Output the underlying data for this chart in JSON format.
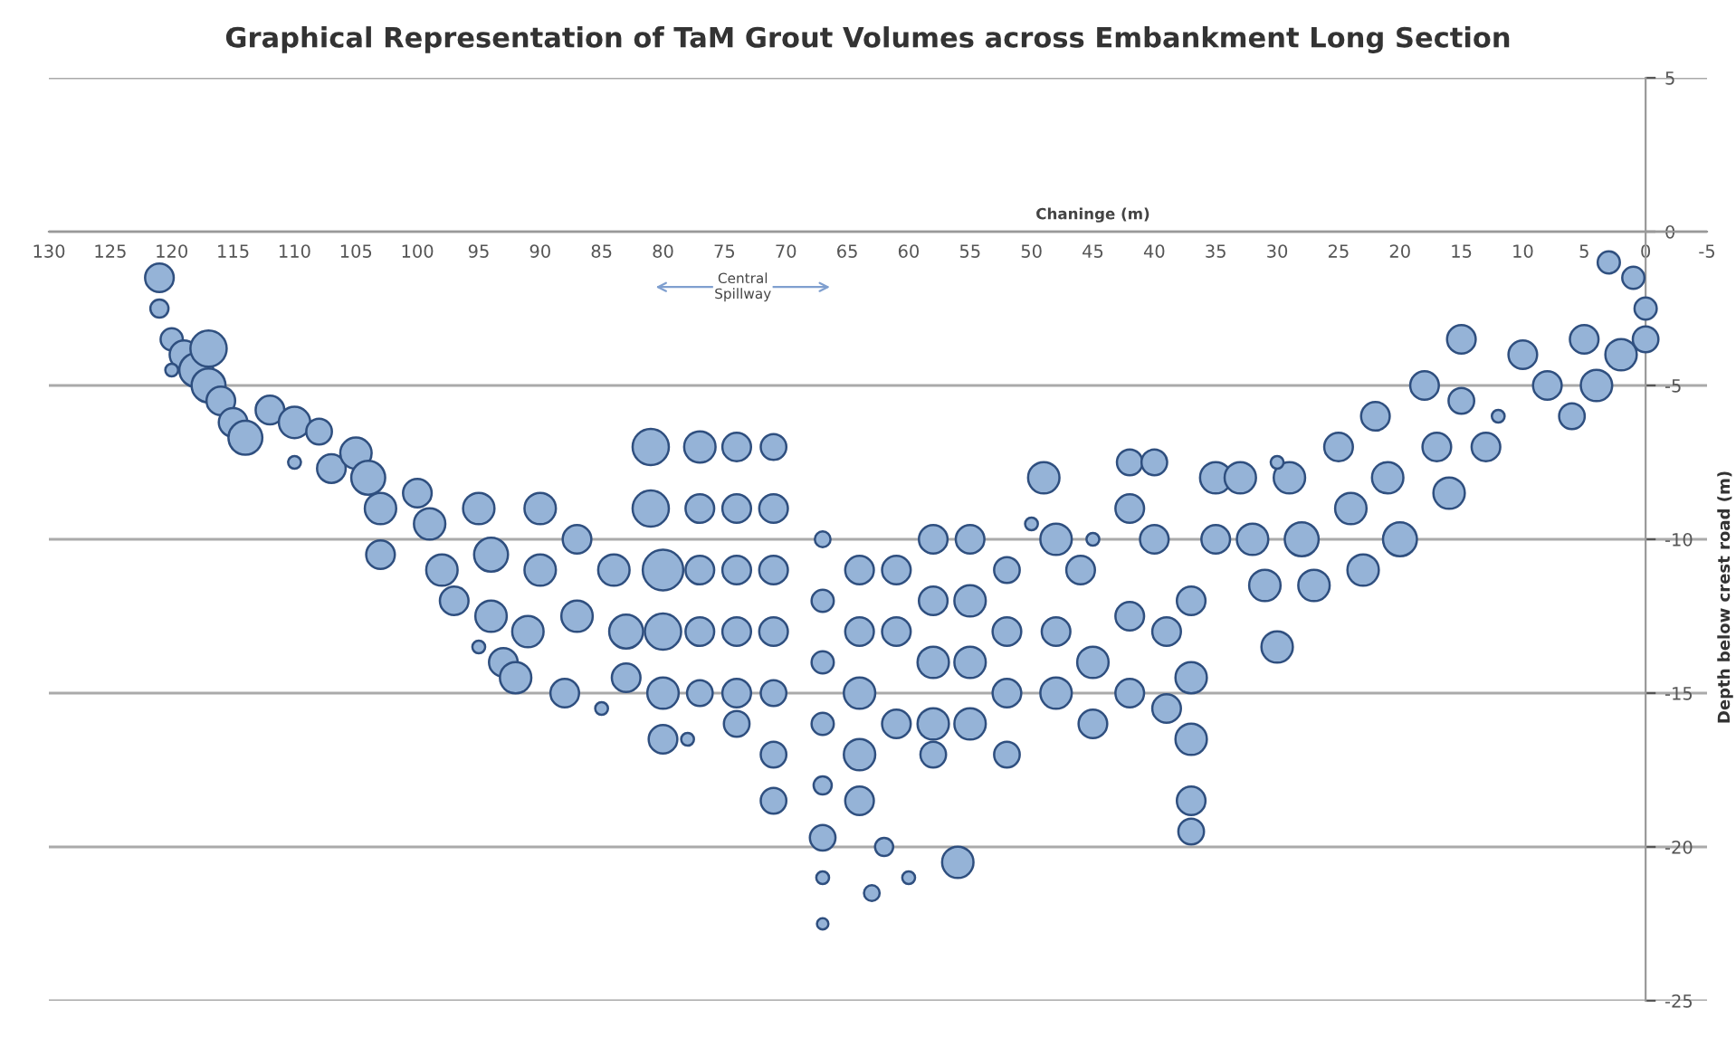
{
  "chart_data": {
    "type": "bubble",
    "title": "Graphical Representation of TaM Grout Volumes across Embankment Long Section",
    "xlabel": "Chaninge (m)",
    "ylabel": "Depth below crest road (m)",
    "color": "#95b3d7",
    "xlim": [
      130,
      -5
    ],
    "ylim": [
      -25,
      5
    ],
    "xticks": [
      130,
      125,
      120,
      115,
      110,
      105,
      100,
      95,
      90,
      85,
      80,
      75,
      70,
      65,
      60,
      55,
      50,
      45,
      40,
      35,
      30,
      25,
      20,
      15,
      10,
      5,
      0,
      -5
    ],
    "yticks": [
      5,
      0,
      -5,
      -10,
      -15,
      -20,
      -25
    ],
    "grid": "y",
    "annotations": [
      {
        "text": "Central Spillway",
        "x": 73.5,
        "y": -1.8
      }
    ],
    "x": [
      121,
      121,
      120,
      119,
      118,
      117,
      117,
      116,
      115,
      114,
      112,
      110,
      108,
      107,
      105,
      104,
      103,
      103,
      100,
      99,
      98,
      97,
      95,
      94,
      94,
      93,
      90,
      90,
      91,
      92,
      87,
      87,
      88,
      84,
      83,
      83,
      81,
      81,
      80,
      80,
      80,
      80,
      77,
      77,
      77,
      77,
      77,
      74,
      74,
      74,
      74,
      74,
      74,
      71,
      71,
      71,
      71,
      71,
      71,
      71,
      110,
      95,
      85,
      78,
      120,
      67,
      67,
      67,
      67,
      67,
      67,
      67,
      67,
      64,
      64,
      64,
      64,
      64,
      61,
      61,
      61,
      62,
      63,
      58,
      58,
      58,
      58,
      58,
      55,
      55,
      55,
      55,
      56,
      52,
      52,
      52,
      52,
      49,
      48,
      48,
      48,
      46,
      45,
      45,
      42,
      42,
      42,
      42,
      40,
      40,
      39,
      39,
      35,
      35,
      37,
      37,
      37,
      37,
      37,
      33,
      32,
      31,
      30,
      29,
      28,
      27,
      25,
      24,
      23,
      22,
      21,
      20,
      18,
      17,
      16,
      15,
      15,
      13,
      10,
      8,
      6,
      5,
      4,
      2,
      1,
      0,
      0,
      3,
      30,
      12,
      45,
      50,
      60
    ],
    "values": [
      -1.5,
      -2.5,
      -3.5,
      -4,
      -4.5,
      -3.8,
      -5,
      -5.5,
      -6.2,
      -6.7,
      -5.8,
      -6.2,
      -6.5,
      -7.7,
      -7.2,
      -8,
      -9,
      -10.5,
      -8.5,
      -9.5,
      -11,
      -12,
      -9,
      -10.5,
      -12.5,
      -14,
      -9,
      -11,
      -13,
      -14.5,
      -10,
      -12.5,
      -15,
      -11,
      -13,
      -14.5,
      -7,
      -9,
      -11,
      -13,
      -15,
      -16.5,
      -7,
      -9,
      -11,
      -13,
      -15,
      -7,
      -9,
      -11,
      -13,
      -15,
      -16,
      -7,
      -9,
      -11,
      -13,
      -15,
      -17,
      -18.5,
      -7.5,
      -13.5,
      -15.5,
      -16.5,
      -4.5,
      -10,
      -12,
      -14,
      -16,
      -18,
      -19.7,
      -21,
      -22.5,
      -11,
      -13,
      -15,
      -17,
      -18.5,
      -11,
      -13,
      -16,
      -20,
      -21.5,
      -10,
      -12,
      -14,
      -16,
      -17,
      -10,
      -12,
      -14,
      -16,
      -20.5,
      -11,
      -13,
      -15,
      -17,
      -8,
      -10,
      -13,
      -15,
      -11,
      -14,
      -16,
      -7.5,
      -9,
      -12.5,
      -15,
      -7.5,
      -10,
      -13,
      -15.5,
      -8,
      -10,
      -12,
      -14.5,
      -16.5,
      -18.5,
      -19.5,
      -8,
      -10,
      -11.5,
      -13.5,
      -8,
      -10,
      -11.5,
      -7,
      -9,
      -11,
      -6,
      -8,
      -10,
      -5,
      -7,
      -8.5,
      -3.5,
      -5.5,
      -7,
      -4,
      -5,
      -6,
      -3.5,
      -5,
      -4,
      -1.5,
      -2.5,
      -3.5,
      -1,
      -7.5,
      -6,
      -10,
      -9.5,
      -21
    ],
    "sizes": [
      0.5,
      0.2,
      0.3,
      0.5,
      0.7,
      0.8,
      0.7,
      0.5,
      0.5,
      0.7,
      0.5,
      0.6,
      0.4,
      0.5,
      0.6,
      0.7,
      0.6,
      0.5,
      0.5,
      0.6,
      0.6,
      0.5,
      0.6,
      0.7,
      0.6,
      0.5,
      0.6,
      0.6,
      0.6,
      0.6,
      0.5,
      0.6,
      0.5,
      0.6,
      0.7,
      0.5,
      0.8,
      0.8,
      1,
      0.8,
      0.6,
      0.5,
      0.6,
      0.5,
      0.5,
      0.5,
      0.4,
      0.5,
      0.5,
      0.5,
      0.5,
      0.5,
      0.4,
      0.4,
      0.5,
      0.5,
      0.5,
      0.4,
      0.4,
      0.4,
      0.1,
      0.1,
      0.1,
      0.1,
      0.1,
      0.15,
      0.3,
      0.3,
      0.3,
      0.2,
      0.4,
      0.1,
      0.08,
      0.5,
      0.5,
      0.6,
      0.6,
      0.5,
      0.5,
      0.5,
      0.5,
      0.2,
      0.15,
      0.5,
      0.5,
      0.6,
      0.6,
      0.4,
      0.5,
      0.6,
      0.6,
      0.6,
      0.6,
      0.4,
      0.5,
      0.5,
      0.4,
      0.6,
      0.6,
      0.5,
      0.6,
      0.5,
      0.6,
      0.5,
      0.4,
      0.5,
      0.5,
      0.5,
      0.4,
      0.5,
      0.5,
      0.5,
      0.6,
      0.5,
      0.5,
      0.6,
      0.6,
      0.5,
      0.4,
      0.6,
      0.6,
      0.6,
      0.6,
      0.6,
      0.7,
      0.6,
      0.5,
      0.6,
      0.6,
      0.5,
      0.6,
      0.7,
      0.5,
      0.5,
      0.6,
      0.5,
      0.4,
      0.5,
      0.5,
      0.5,
      0.4,
      0.5,
      0.6,
      0.6,
      0.3,
      0.3,
      0.4,
      0.3,
      0.1,
      0.1,
      0.1,
      0.1,
      0.1
    ]
  }
}
